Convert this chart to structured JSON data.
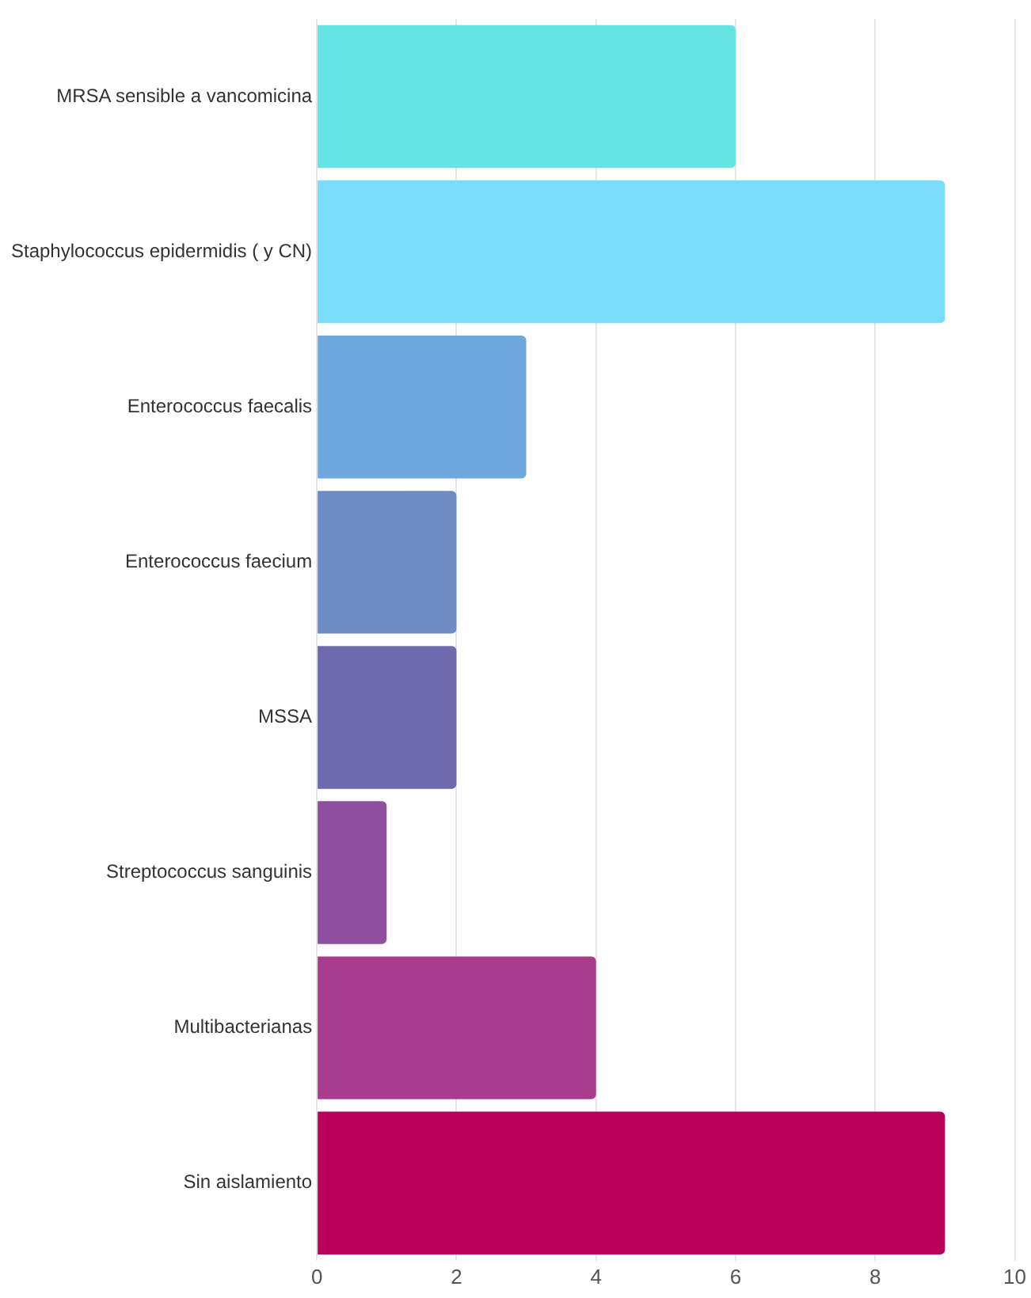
{
  "chart_data": {
    "type": "bar",
    "orientation": "horizontal",
    "categories": [
      "MRSA sensible a vancomicina",
      "Staphylococcus epidermidis ( y CN)",
      "Enterococcus faecalis",
      "Enterococcus faecium",
      "MSSA",
      "Streptococcus sanguinis",
      "Multibacterianas",
      "Sin aislamiento"
    ],
    "values": [
      6,
      9,
      3,
      2,
      2,
      1,
      4,
      9
    ],
    "colors": [
      "#66e3e3",
      "#7adcf9",
      "#6fa8dc",
      "#6e8cc4",
      "#6f69ae",
      "#8e4f9f",
      "#a93c8c",
      "#b9005a"
    ],
    "xlim": [
      0,
      10
    ],
    "xticks": [
      0,
      2,
      4,
      6,
      8,
      10
    ],
    "grid": "x"
  }
}
